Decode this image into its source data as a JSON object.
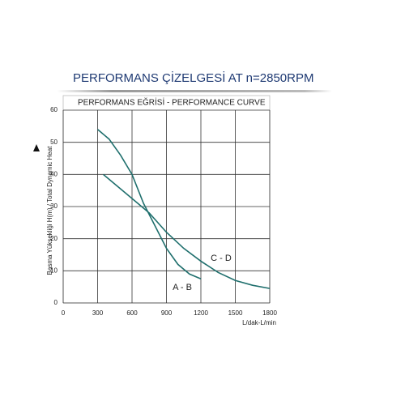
{
  "chart_data": {
    "type": "line",
    "title": "PERFORMANS ÇİZELGESİ  AT n=2850RPM",
    "subtitle": "PERFORMANS EĞRİSİ - PERFORMANCE CURVE",
    "x_label": "L/dak-L/min",
    "y_label": "Basma Yüksekliği H(m) / Total Dynamic Heat",
    "xlim": [
      0,
      1800
    ],
    "xticks": [
      0,
      300,
      600,
      900,
      1200,
      1500,
      1800
    ],
    "ylim": [
      0,
      60
    ],
    "yticks": [
      0,
      10,
      20,
      30,
      40,
      50,
      60
    ],
    "grid": true,
    "series": [
      {
        "name": "A - B",
        "color": "#1f6f6d",
        "x": [
          300,
          400,
          500,
          600,
          700,
          800,
          900,
          1000,
          1100,
          1200
        ],
        "values": [
          54,
          51,
          46,
          40,
          31,
          24,
          17,
          12,
          9,
          7.5
        ]
      },
      {
        "name": "C - D",
        "color": "#1f6f6d",
        "x": [
          350,
          450,
          550,
          650,
          750,
          900,
          1050,
          1200,
          1350,
          1500,
          1650,
          1800
        ],
        "values": [
          40,
          37,
          34,
          31,
          28,
          22,
          17,
          13,
          9.5,
          7,
          5.5,
          4.5
        ]
      }
    ]
  }
}
